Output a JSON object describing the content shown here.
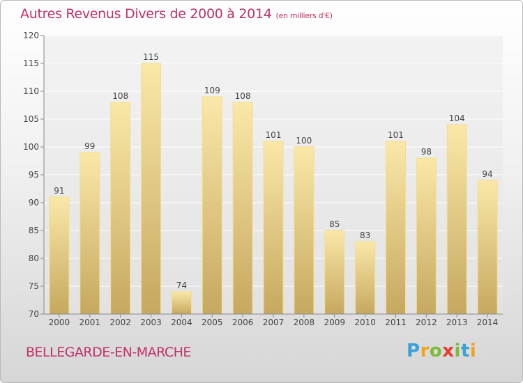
{
  "title": "Autres Revenus Divers de 2000 à 2014",
  "title_unit": "(en milliers d'€)",
  "place": "BELLEGARDE-EN-MARCHE",
  "brand": {
    "letters": [
      "P",
      "r",
      "o",
      "x",
      "i",
      "t",
      "i"
    ],
    "colors": [
      "#3aa0d8",
      "#f4a21c",
      "#7dbb3a",
      "#e63c2f",
      "#7dbb3a",
      "#3aa0d8",
      "#f4a21c"
    ]
  },
  "colors": {
    "title": "#c0306a",
    "bar_top": "#fae8a8",
    "bar_bottom": "#c6a85f",
    "bar_edge": "#f5de8a"
  },
  "chart_data": {
    "type": "bar",
    "categories": [
      "2000",
      "2001",
      "2002",
      "2003",
      "2004",
      "2005",
      "2006",
      "2007",
      "2008",
      "2009",
      "2010",
      "2011",
      "2012",
      "2013",
      "2014"
    ],
    "values": [
      91,
      99,
      108,
      115,
      74,
      109,
      108,
      101,
      100,
      85,
      83,
      101,
      98,
      104,
      94
    ],
    "ylim": [
      70,
      120
    ],
    "yticks": [
      70,
      75,
      80,
      85,
      90,
      95,
      100,
      105,
      110,
      115,
      120
    ],
    "grid": true
  }
}
